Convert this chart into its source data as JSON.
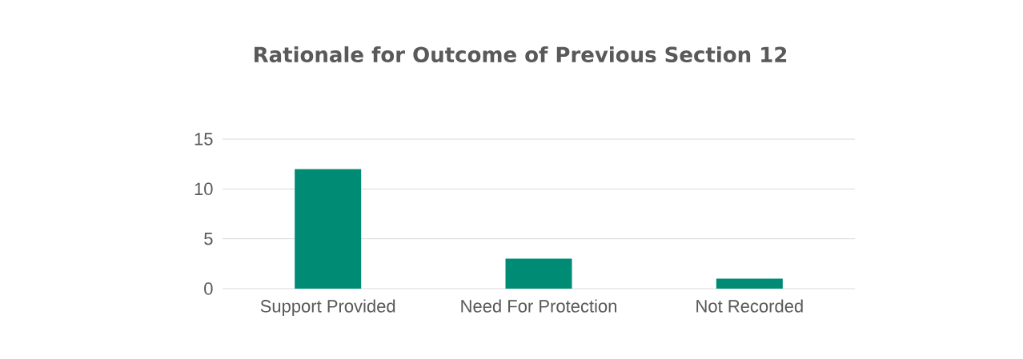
{
  "chart_data": {
    "type": "bar",
    "title": "Rationale for Outcome of Previous Section 12",
    "categories": [
      "Support Provided",
      "Need For Protection",
      "Not Recorded"
    ],
    "values": [
      12,
      3,
      1
    ],
    "color": "#008b74",
    "ylim": [
      0,
      15
    ],
    "yticks": [
      0,
      5,
      10,
      15
    ],
    "grid": "y"
  }
}
